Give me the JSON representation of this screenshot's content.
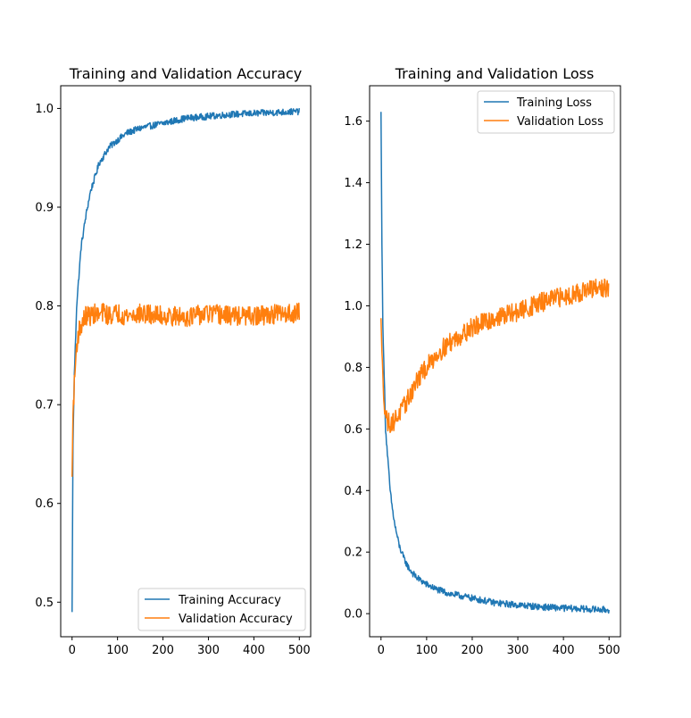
{
  "colors": {
    "train": "#1f77b4",
    "val": "#ff7f0e"
  },
  "chart_data": [
    {
      "type": "line",
      "title": "Training and Validation Accuracy",
      "xlabel": "",
      "ylabel": "",
      "xlim": [
        -25,
        525
      ],
      "ylim": [
        0.465,
        1.023
      ],
      "xticks": [
        0,
        100,
        200,
        300,
        400,
        500
      ],
      "yticks": [
        0.5,
        0.6,
        0.7,
        0.8,
        0.9,
        1.0
      ],
      "ytick_labels": [
        "0.5",
        "0.6",
        "0.7",
        "0.8",
        "0.9",
        "1.0"
      ],
      "grid": false,
      "legend": "bottom-right",
      "series": [
        {
          "name": "Training Accuracy",
          "x": [
            0,
            2,
            5,
            8,
            10,
            15,
            20,
            25,
            30,
            40,
            50,
            60,
            70,
            80,
            100,
            120,
            150,
            200,
            250,
            300,
            350,
            400,
            450,
            500
          ],
          "values": [
            0.49,
            0.66,
            0.73,
            0.77,
            0.8,
            0.83,
            0.86,
            0.875,
            0.89,
            0.915,
            0.93,
            0.945,
            0.952,
            0.96,
            0.968,
            0.975,
            0.98,
            0.985,
            0.99,
            0.992,
            0.994,
            0.995,
            0.996,
            0.997
          ]
        },
        {
          "name": "Validation Accuracy",
          "x": [
            0,
            2,
            5,
            8,
            10,
            15,
            20,
            25,
            30,
            40,
            50,
            60,
            70,
            80,
            100,
            120,
            150,
            200,
            250,
            300,
            350,
            400,
            450,
            500
          ],
          "values": [
            0.627,
            0.69,
            0.72,
            0.745,
            0.76,
            0.775,
            0.78,
            0.785,
            0.79,
            0.79,
            0.792,
            0.79,
            0.794,
            0.79,
            0.793,
            0.79,
            0.792,
            0.79,
            0.789,
            0.792,
            0.79,
            0.789,
            0.792,
            0.793
          ]
        }
      ]
    },
    {
      "type": "line",
      "title": "Training and Validation Loss",
      "xlabel": "",
      "ylabel": "",
      "xlim": [
        -25,
        525
      ],
      "ylim": [
        -0.075,
        1.715
      ],
      "xticks": [
        0,
        100,
        200,
        300,
        400,
        500
      ],
      "yticks": [
        0.0,
        0.2,
        0.4,
        0.6,
        0.8,
        1.0,
        1.2,
        1.4,
        1.6
      ],
      "ytick_labels": [
        "0.0",
        "0.2",
        "0.4",
        "0.6",
        "0.8",
        "1.0",
        "1.2",
        "1.4",
        "1.6"
      ],
      "grid": false,
      "legend": "top-right",
      "series": [
        {
          "name": "Training Loss",
          "x": [
            0,
            2,
            4,
            6,
            8,
            10,
            15,
            20,
            25,
            30,
            40,
            50,
            60,
            70,
            80,
            100,
            120,
            150,
            200,
            250,
            300,
            350,
            400,
            450,
            500
          ],
          "values": [
            1.63,
            1.2,
            0.95,
            0.82,
            0.72,
            0.6,
            0.5,
            0.4,
            0.34,
            0.29,
            0.22,
            0.18,
            0.15,
            0.13,
            0.115,
            0.095,
            0.08,
            0.065,
            0.05,
            0.035,
            0.028,
            0.022,
            0.018,
            0.015,
            0.012
          ]
        },
        {
          "name": "Validation Loss",
          "x": [
            0,
            2,
            4,
            6,
            8,
            10,
            15,
            20,
            25,
            30,
            40,
            50,
            60,
            70,
            80,
            100,
            120,
            150,
            200,
            250,
            300,
            350,
            400,
            450,
            500
          ],
          "values": [
            0.96,
            0.85,
            0.76,
            0.72,
            0.68,
            0.65,
            0.62,
            0.62,
            0.62,
            0.63,
            0.65,
            0.67,
            0.7,
            0.73,
            0.76,
            0.8,
            0.84,
            0.88,
            0.93,
            0.96,
            0.98,
            1.01,
            1.03,
            1.05,
            1.06
          ]
        }
      ]
    }
  ]
}
